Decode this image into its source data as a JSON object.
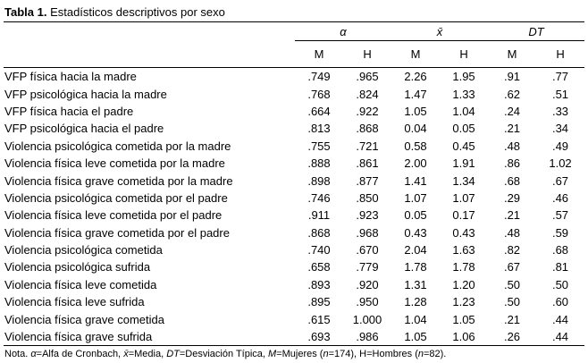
{
  "title": {
    "label": "Tabla 1.",
    "text": " Estadísticos descriptivos por sexo"
  },
  "table": {
    "group_headers": [
      "α",
      "x̄",
      "DT"
    ],
    "sub_headers": [
      "M",
      "H",
      "M",
      "H",
      "M",
      "H"
    ],
    "rows": [
      {
        "label": "VFP física hacia la madre",
        "values": [
          ".749",
          ".965",
          "2.26",
          "1.95",
          ".91",
          ".77"
        ]
      },
      {
        "label": "VFP psicológica hacia la madre",
        "values": [
          ".768",
          ".824",
          "1.47",
          "1.33",
          ".62",
          ".51"
        ]
      },
      {
        "label": "VFP física hacia el padre",
        "values": [
          ".664",
          ".922",
          "1.05",
          "1.04",
          ".24",
          ".33"
        ]
      },
      {
        "label": "VFP psicológica hacia el padre",
        "values": [
          ".813",
          ".868",
          "0.04",
          "0.05",
          ".21",
          ".34"
        ]
      },
      {
        "label": "Violencia psicológica cometida por la madre",
        "values": [
          ".755",
          ".721",
          "0.58",
          "0.45",
          ".48",
          ".49"
        ]
      },
      {
        "label": "Violencia física leve cometida por la madre",
        "values": [
          ".888",
          ".861",
          "2.00",
          "1.91",
          ".86",
          "1.02"
        ]
      },
      {
        "label": "Violencia física grave cometida por la madre",
        "values": [
          ".898",
          ".877",
          "1.41",
          "1.34",
          ".68",
          ".67"
        ]
      },
      {
        "label": "Violencia psicológica cometida por el padre",
        "values": [
          ".746",
          ".850",
          "1.07",
          "1.07",
          ".29",
          ".46"
        ]
      },
      {
        "label": "Violencia física leve cometida por el padre",
        "values": [
          ".911",
          ".923",
          "0.05",
          "0.17",
          ".21",
          ".57"
        ]
      },
      {
        "label": "Violencia física grave cometida por el padre",
        "values": [
          ".868",
          ".968",
          "0.43",
          "0.43",
          ".48",
          ".59"
        ]
      },
      {
        "label": "Violencia psicológica cometida",
        "values": [
          ".740",
          ".670",
          "2.04",
          "1.63",
          ".82",
          ".68"
        ]
      },
      {
        "label": "Violencia psicológica sufrida",
        "values": [
          ".658",
          ".779",
          "1.78",
          "1.78",
          ".67",
          ".81"
        ]
      },
      {
        "label": "Violencia física leve cometida",
        "values": [
          ".893",
          ".920",
          "1.31",
          "1.20",
          ".50",
          ".50"
        ]
      },
      {
        "label": "Violencia física leve sufrida",
        "values": [
          ".895",
          ".950",
          "1.28",
          "1.23",
          ".50",
          ".60"
        ]
      },
      {
        "label": "Violencia física grave cometida",
        "values": [
          ".615",
          "1.000",
          "1.04",
          "1.05",
          ".21",
          ".44"
        ]
      },
      {
        "label": "Violencia física grave sufrida",
        "values": [
          ".693",
          ".986",
          "1.05",
          "1.06",
          ".26",
          ".44"
        ]
      }
    ]
  },
  "note": {
    "segments": [
      {
        "text": "Nota. ",
        "italic": false
      },
      {
        "text": "α",
        "italic": true
      },
      {
        "text": "=Alfa de Cronbach, ",
        "italic": false
      },
      {
        "text": "x̄",
        "italic": true
      },
      {
        "text": "=Media, ",
        "italic": false
      },
      {
        "text": "DT",
        "italic": true
      },
      {
        "text": "=Desviación Típica, ",
        "italic": false
      },
      {
        "text": "M",
        "italic": true
      },
      {
        "text": "=Mujeres (",
        "italic": false
      },
      {
        "text": "n",
        "italic": true
      },
      {
        "text": "=174), H=Hombres (",
        "italic": false
      },
      {
        "text": "n",
        "italic": true
      },
      {
        "text": "=82).",
        "italic": false
      }
    ]
  }
}
